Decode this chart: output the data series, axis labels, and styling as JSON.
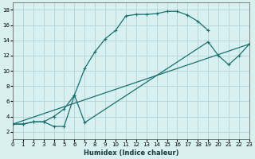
{
  "xlabel": "Humidex (Indice chaleur)",
  "bg_color": "#d8f0f0",
  "grid_color": "#b8d8d8",
  "line_color": "#1a7070",
  "xlim": [
    0,
    23
  ],
  "ylim": [
    1,
    19
  ],
  "xticks": [
    0,
    1,
    2,
    3,
    4,
    5,
    6,
    7,
    8,
    9,
    10,
    11,
    12,
    13,
    14,
    15,
    16,
    17,
    18,
    19,
    20,
    21,
    22,
    23
  ],
  "yticks": [
    2,
    4,
    6,
    8,
    10,
    12,
    14,
    16,
    18
  ],
  "curve1_x": [
    0,
    1,
    2,
    3,
    4,
    5,
    6,
    7,
    8,
    9,
    10,
    11,
    12,
    13,
    14,
    15,
    16,
    17,
    18,
    19
  ],
  "curve1_y": [
    3,
    3,
    3.3,
    3.3,
    4.0,
    5.0,
    6.8,
    10.3,
    12.5,
    14.2,
    15.3,
    17.2,
    17.4,
    17.4,
    17.5,
    17.8,
    17.8,
    17.3,
    16.5,
    15.3
  ],
  "curve2_x": [
    0,
    1,
    2,
    3,
    4,
    5,
    6,
    7,
    19,
    20,
    21,
    22,
    23
  ],
  "curve2_y": [
    3,
    3,
    3.3,
    3.3,
    2.7,
    2.7,
    6.8,
    3.2,
    13.8,
    12.0,
    10.8,
    12.0,
    13.5
  ],
  "curve3_x": [
    0,
    23
  ],
  "curve3_y": [
    3,
    13.5
  ]
}
